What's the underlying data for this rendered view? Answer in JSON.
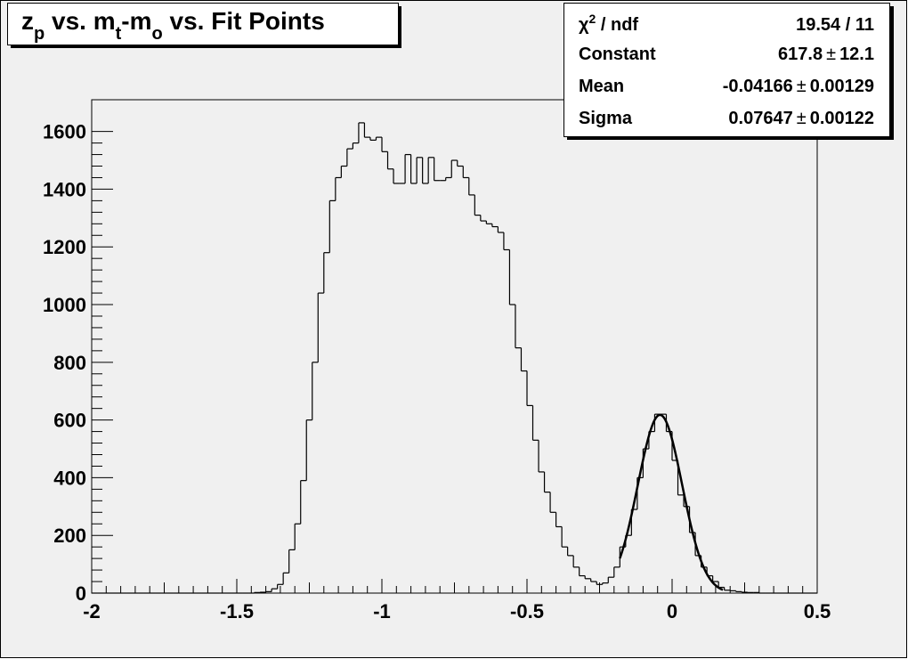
{
  "chart_data": {
    "type": "histogram",
    "title": [
      {
        "text": "z"
      },
      {
        "text": "p",
        "sub": true
      },
      {
        "text": " vs. m"
      },
      {
        "text": "t",
        "sub": true
      },
      {
        "text": "-m"
      },
      {
        "text": "o",
        "sub": true
      },
      {
        "text": " vs. Fit Points"
      }
    ],
    "bins": [
      -2,
      -1.98,
      -1.96,
      -1.94,
      -1.92,
      -1.9,
      -1.88,
      -1.86,
      -1.84,
      -1.82,
      -1.8,
      -1.78,
      -1.76,
      -1.74,
      -1.72,
      -1.7,
      -1.68,
      -1.66,
      -1.64,
      -1.62,
      -1.6,
      -1.58,
      -1.56,
      -1.54,
      -1.52,
      -1.5,
      -1.48,
      -1.46,
      -1.44,
      -1.42,
      -1.4,
      -1.38,
      -1.36,
      -1.34,
      -1.32,
      -1.3,
      -1.28,
      -1.26,
      -1.24,
      -1.22,
      -1.2,
      -1.18,
      -1.16,
      -1.14,
      -1.12,
      -1.1,
      -1.08,
      -1.06,
      -1.04,
      -1.02,
      -1,
      -0.98,
      -0.96,
      -0.94,
      -0.92,
      -0.9,
      -0.88,
      -0.86,
      -0.84,
      -0.82,
      -0.8,
      -0.78,
      -0.76,
      -0.74,
      -0.72,
      -0.7,
      -0.68,
      -0.66,
      -0.64,
      -0.62,
      -0.6,
      -0.58,
      -0.56,
      -0.54,
      -0.52,
      -0.5,
      -0.48,
      -0.46,
      -0.44,
      -0.42,
      -0.4,
      -0.38,
      -0.36,
      -0.34,
      -0.32,
      -0.3,
      -0.28,
      -0.26,
      -0.24,
      -0.22,
      -0.2,
      -0.18,
      -0.16,
      -0.14,
      -0.12,
      -0.1,
      -0.08,
      -0.06,
      -0.04,
      -0.02,
      0,
      0.02,
      0.04,
      0.06,
      0.08,
      0.1,
      0.12,
      0.14,
      0.16,
      0.18,
      0.2,
      0.22,
      0.24,
      0.26,
      0.28,
      0.3,
      0.32,
      0.34,
      0.36,
      0.38,
      0.4,
      0.42,
      0.44,
      0.46,
      0.48,
      0.5
    ],
    "values": [
      0,
      0,
      0,
      0,
      0,
      0,
      0,
      0,
      0,
      0,
      0,
      0,
      0,
      0,
      0,
      0,
      0,
      0,
      0,
      0,
      0,
      0,
      0,
      0,
      0,
      0,
      0,
      0,
      2,
      3,
      5,
      15,
      30,
      70,
      150,
      240,
      390,
      600,
      800,
      1040,
      1180,
      1360,
      1440,
      1480,
      1540,
      1560,
      1630,
      1580,
      1570,
      1580,
      1530,
      1470,
      1420,
      1420,
      1520,
      1420,
      1510,
      1420,
      1510,
      1430,
      1430,
      1440,
      1500,
      1480,
      1440,
      1380,
      1310,
      1290,
      1280,
      1270,
      1250,
      1190,
      1000,
      850,
      770,
      650,
      530,
      420,
      350,
      280,
      230,
      160,
      130,
      90,
      60,
      50,
      40,
      30,
      35,
      55,
      90,
      160,
      200,
      290,
      400,
      500,
      560,
      620,
      620,
      560,
      460,
      340,
      300,
      210,
      130,
      90,
      60,
      40,
      20,
      10,
      8,
      5,
      3,
      2,
      2,
      0,
      0,
      0,
      0,
      0,
      0,
      0,
      0,
      0,
      0
    ],
    "color": "#000000",
    "xlim": [
      -2,
      0.5
    ],
    "xticks": [
      -2,
      -1.5,
      -1,
      -0.5,
      0,
      0.5
    ],
    "ylim": [
      0,
      1710
    ],
    "yticks": [
      0,
      200,
      400,
      600,
      800,
      1000,
      1200,
      1400,
      1600
    ],
    "fit": {
      "type": "gaussian",
      "range": [
        -0.18,
        0.175
      ],
      "color": "#000000"
    },
    "stats": {
      "chi2_label": [
        {
          "text": "χ"
        },
        {
          "text": "2",
          "sup": true
        },
        {
          "text": " / ndf"
        }
      ],
      "chi2": "19.54 / 11",
      "plus_minus": "±",
      "constant": {
        "label": "Constant",
        "value": 617.8,
        "error": 12.1
      },
      "mean": {
        "label": "Mean",
        "value": -0.04166,
        "error": 0.00129
      },
      "sigma": {
        "label": "Sigma",
        "value": 0.07647,
        "error": 0.00122
      }
    }
  }
}
